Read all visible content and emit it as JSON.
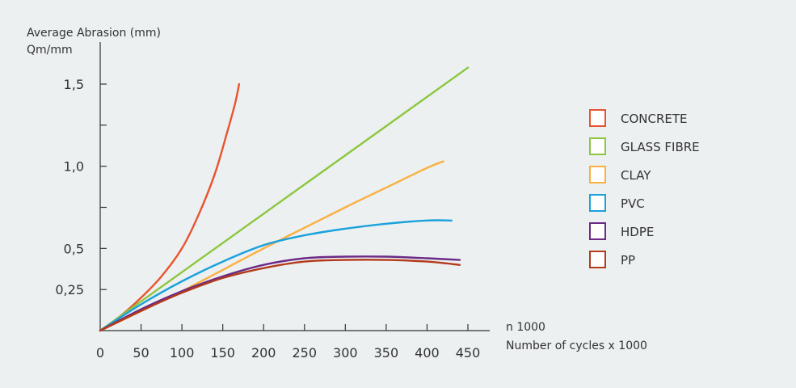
{
  "chart_data": {
    "type": "line",
    "ylabel_line1": "Average Abrasion (mm)",
    "ylabel_line2": "Qm/mm",
    "xlabel_line1": "n 1000",
    "xlabel_line2": "Number of cycles x 1000",
    "xlim": [
      0,
      450
    ],
    "ylim": [
      0,
      1.5
    ],
    "x_ticks": [
      0,
      50,
      100,
      150,
      200,
      250,
      300,
      350,
      400,
      450
    ],
    "x_tick_labels": [
      "0",
      "50",
      "100",
      "150",
      "200",
      "250",
      "300",
      "350",
      "400",
      "450"
    ],
    "y_ticks": [
      0,
      0.25,
      0.5,
      0.75,
      1.0,
      1.25,
      1.5
    ],
    "y_tick_labels": [
      "",
      "0,25",
      "0,5",
      "",
      "1,0",
      "",
      "1,5"
    ],
    "grid": false,
    "legend_position": "right",
    "series": [
      {
        "name": "CONCRETE",
        "color": "#e8542e",
        "x": [
          0,
          25,
          50,
          75,
          100,
          120,
          140,
          155,
          165,
          170
        ],
        "y": [
          0,
          0.09,
          0.2,
          0.33,
          0.5,
          0.7,
          0.95,
          1.2,
          1.38,
          1.5
        ]
      },
      {
        "name": "GLASS FIBRE",
        "color": "#8dc63f",
        "x": [
          0,
          450
        ],
        "y": [
          0,
          1.6
        ]
      },
      {
        "name": "CLAY",
        "color": "#fbb040",
        "x": [
          0,
          100,
          200,
          300,
          350,
          400,
          420
        ],
        "y": [
          0,
          0.24,
          0.5,
          0.75,
          0.87,
          0.99,
          1.03
        ]
      },
      {
        "name": "PVC",
        "color": "#1ba1dc",
        "x": [
          0,
          50,
          100,
          150,
          200,
          250,
          300,
          350,
          400,
          430
        ],
        "y": [
          0,
          0.16,
          0.3,
          0.42,
          0.52,
          0.58,
          0.62,
          0.65,
          0.67,
          0.67
        ]
      },
      {
        "name": "HDPE",
        "color": "#6b2a86",
        "x": [
          0,
          50,
          100,
          150,
          200,
          250,
          300,
          350,
          400,
          440
        ],
        "y": [
          0,
          0.13,
          0.24,
          0.33,
          0.4,
          0.44,
          0.45,
          0.45,
          0.44,
          0.43
        ]
      },
      {
        "name": "PP",
        "color": "#b33a1a",
        "x": [
          0,
          50,
          100,
          150,
          200,
          250,
          300,
          350,
          400,
          440
        ],
        "y": [
          0,
          0.12,
          0.23,
          0.32,
          0.38,
          0.42,
          0.43,
          0.43,
          0.42,
          0.4
        ]
      }
    ]
  }
}
